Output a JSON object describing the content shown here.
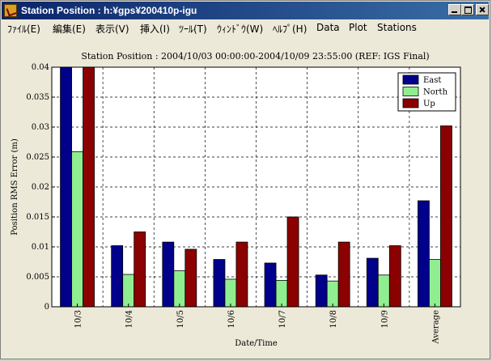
{
  "window": {
    "title": "Station Position : h:¥gps¥200410p-igu"
  },
  "menu": {
    "items": [
      "ﾌｧｲﾙ(E)",
      "編集(E)",
      "表示(V)",
      "挿入(I)",
      "ﾂｰﾙ(T)",
      "ｳｨﾝﾄﾞｳ(W)",
      "ﾍﾙﾌﾟ(H)",
      "Data",
      "Plot",
      "Stations"
    ]
  },
  "chart_data": {
    "type": "bar",
    "title": "Station Position : 2004/10/03 00:00:00-2004/10/09 23:55:00 (REF: IGS Final)",
    "xlabel": "Date/Time",
    "ylabel": "Position RMS Error (m)",
    "ylim": [
      0,
      0.04
    ],
    "yticks": [
      "0",
      "0.005",
      "0.01",
      "0.015",
      "0.02",
      "0.025",
      "0.03",
      "0.035",
      "0.04"
    ],
    "categories": [
      "10/3",
      "10/4",
      "10/5",
      "10/6",
      "10/7",
      "10/8",
      "10/9",
      "Average"
    ],
    "series": [
      {
        "name": "East",
        "color": "#00008b",
        "values": [
          0.04,
          0.0102,
          0.0108,
          0.0079,
          0.0073,
          0.0053,
          0.0081,
          0.0177
        ]
      },
      {
        "name": "North",
        "color": "#90ee90",
        "values": [
          0.0259,
          0.0054,
          0.006,
          0.0046,
          0.0044,
          0.0043,
          0.0053,
          0.0079
        ]
      },
      {
        "name": "Up",
        "color": "#8b0000",
        "values": [
          0.04,
          0.0125,
          0.0096,
          0.0108,
          0.015,
          0.0108,
          0.0102,
          0.0302
        ]
      }
    ],
    "grid": true,
    "legend_position": "top-right"
  }
}
